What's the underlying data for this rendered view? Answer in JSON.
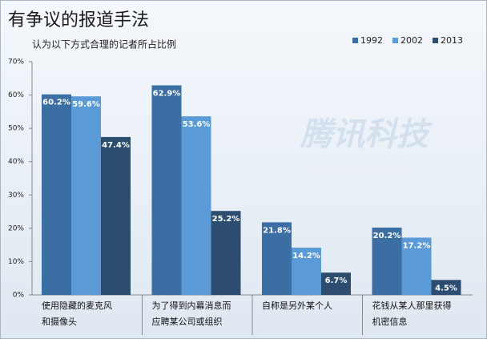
{
  "chart_data": {
    "type": "bar",
    "title": "有争议的报道手法",
    "subtitle": "认为以下方式合理的记者所占比例",
    "watermark": "腾讯科技",
    "categories": [
      [
        "使用隐藏的麦克风",
        "和摄像头"
      ],
      [
        "为了得到内幕消息而",
        "应聘某公司或组织"
      ],
      [
        "自称是另外某个人"
      ],
      [
        "花钱从某人那里获得",
        "机密信息"
      ]
    ],
    "series": [
      {
        "name": "1992",
        "color": "#3b6fa3",
        "values": [
          60.2,
          62.9,
          21.8,
          20.2
        ],
        "value_labels": [
          "60.2%",
          "62.9%",
          "21.8%",
          "20.2%"
        ]
      },
      {
        "name": "2002",
        "color": "#5a9ad6",
        "values": [
          59.6,
          53.6,
          14.2,
          17.2
        ],
        "value_labels": [
          "59.6%",
          "53.6%",
          "14.2%",
          "17.2%"
        ]
      },
      {
        "name": "2013",
        "color": "#2c4d70",
        "values": [
          47.4,
          25.2,
          6.7,
          4.5
        ],
        "value_labels": [
          "47.4%",
          "25.2%",
          "6.7%",
          "4.5%"
        ]
      }
    ],
    "ylim": [
      0,
      70
    ],
    "yticks": [
      {
        "value": 0,
        "label": "0%"
      },
      {
        "value": 10,
        "label": "10%"
      },
      {
        "value": 20,
        "label": "20%"
      },
      {
        "value": 30,
        "label": "30%"
      },
      {
        "value": 40,
        "label": "40%"
      },
      {
        "value": 50,
        "label": "50%"
      },
      {
        "value": 60,
        "label": "60%"
      },
      {
        "value": 70,
        "label": "70%"
      }
    ],
    "grid": false,
    "legend": "top-right"
  }
}
